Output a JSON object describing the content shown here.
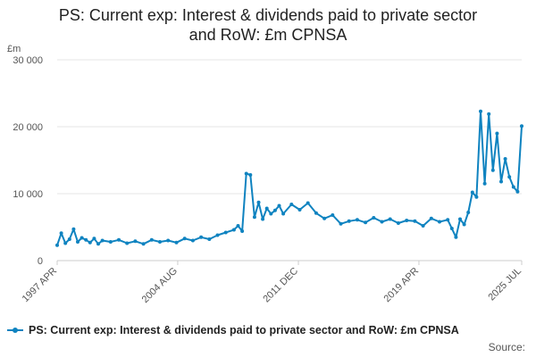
{
  "title_line1": "PS: Current exp: Interest & dividends paid to private sector",
  "title_line2": "and RoW: £m CPNSA",
  "source_label": "Source:",
  "colors": {
    "series": "#0f83c0",
    "grid": "#e6e6e6",
    "axis": "#cccccc"
  },
  "chart_data": {
    "type": "line",
    "title": "PS: Current exp: Interest & dividends paid to private sector and RoW: £m CPNSA",
    "unit_label": "£m",
    "xlabel": "",
    "ylabel": "£m",
    "ylim": [
      0,
      30000
    ],
    "y_ticks": [
      0,
      10000,
      20000,
      30000
    ],
    "y_tick_labels": [
      "0",
      "10 000",
      "20 000",
      "30 000"
    ],
    "x_range": [
      1997.25,
      2025.5
    ],
    "x_ticks": [
      1997.25,
      2004.58,
      2011.92,
      2019.25,
      2025.5
    ],
    "x_tick_labels": [
      "1997 APR",
      "2004 AUG",
      "2011 DEC",
      "2019 APR",
      "2025 JUL"
    ],
    "grid": true,
    "legend_position": "bottom",
    "series": [
      {
        "name": "PS: Current exp: Interest & dividends paid to private sector and RoW: £m CPNSA",
        "x": [
          1997.25,
          1997.5,
          1997.75,
          1998.0,
          1998.25,
          1998.5,
          1998.75,
          1999.0,
          1999.25,
          1999.5,
          1999.75,
          2000.0,
          2000.5,
          2001.0,
          2001.5,
          2002.0,
          2002.5,
          2003.0,
          2003.5,
          2004.0,
          2004.5,
          2005.0,
          2005.5,
          2006.0,
          2006.5,
          2007.0,
          2007.5,
          2008.0,
          2008.25,
          2008.5,
          2008.75,
          2009.0,
          2009.25,
          2009.5,
          2009.75,
          2010.0,
          2010.25,
          2010.5,
          2010.75,
          2011.0,
          2011.5,
          2012.0,
          2012.5,
          2013.0,
          2013.5,
          2014.0,
          2014.5,
          2015.0,
          2015.5,
          2016.0,
          2016.5,
          2017.0,
          2017.5,
          2018.0,
          2018.5,
          2019.0,
          2019.5,
          2020.0,
          2020.5,
          2021.0,
          2021.25,
          2021.5,
          2021.75,
          2022.0,
          2022.25,
          2022.5,
          2022.75,
          2023.0,
          2023.25,
          2023.5,
          2023.75,
          2024.0,
          2024.25,
          2024.5,
          2024.75,
          2025.0,
          2025.25,
          2025.5
        ],
        "values": [
          2300,
          4100,
          2600,
          3200,
          4700,
          2800,
          3400,
          3100,
          2700,
          3300,
          2500,
          3000,
          2800,
          3100,
          2600,
          2900,
          2500,
          3100,
          2800,
          3000,
          2700,
          3300,
          3000,
          3500,
          3200,
          3800,
          4200,
          4600,
          5200,
          4400,
          13000,
          12800,
          6500,
          8700,
          6200,
          7800,
          7000,
          7500,
          8200,
          7000,
          8400,
          7600,
          8600,
          7100,
          6300,
          6800,
          5500,
          5900,
          6100,
          5700,
          6400,
          5800,
          6200,
          5600,
          6000,
          5900,
          5200,
          6300,
          5800,
          6100,
          4800,
          3500,
          6200,
          5400,
          7200,
          10200,
          9500,
          22300,
          11500,
          21900,
          13500,
          19000,
          11800,
          15200,
          12500,
          11000,
          10300,
          20100
        ]
      }
    ]
  }
}
